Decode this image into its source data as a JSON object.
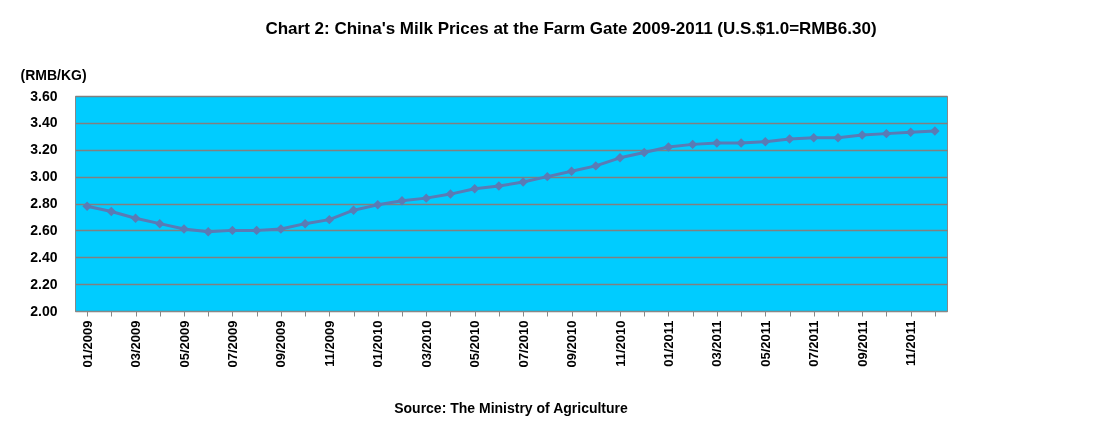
{
  "chart_data": {
    "type": "line",
    "title": "Chart 2: China's  Milk Prices at the Farm Gate 2009-2011 (U.S.$1.0=RMB6.30)",
    "ylabel": "(RMB/KG)",
    "categories": [
      "01/2009",
      null,
      "03/2009",
      null,
      "05/2009",
      null,
      "07/2009",
      null,
      "09/2009",
      null,
      "11/2009",
      null,
      "01/2010",
      null,
      "03/2010",
      null,
      "05/2010",
      null,
      "07/2010",
      null,
      "09/2010",
      null,
      "11/2010",
      null,
      "01/2011",
      null,
      "03/2011",
      null,
      "05/2011",
      null,
      "07/2011",
      null,
      "09/2011",
      null,
      "11/2011",
      null
    ],
    "series": [
      {
        "color": "#5a7bb5",
        "values": [
          2.78,
          2.74,
          2.69,
          2.65,
          2.61,
          2.59,
          2.6,
          2.6,
          2.61,
          2.65,
          2.68,
          2.75,
          2.79,
          2.82,
          2.84,
          2.87,
          2.91,
          2.93,
          2.96,
          3.0,
          3.04,
          3.08,
          3.14,
          3.18,
          3.22,
          3.24,
          3.25,
          3.25,
          3.26,
          3.28,
          3.29,
          3.29,
          3.31,
          3.32,
          3.33,
          3.34
        ]
      }
    ],
    "ylim": [
      2.0,
      3.6
    ],
    "yticks": [
      {
        "value": 2.0,
        "label": "2.00"
      },
      {
        "value": 2.2,
        "label": "2.20"
      },
      {
        "value": 2.4,
        "label": "2.40"
      },
      {
        "value": 2.6,
        "label": "2.60"
      },
      {
        "value": 2.8,
        "label": "2.80"
      },
      {
        "value": 3.0,
        "label": "3.00"
      },
      {
        "value": 3.2,
        "label": "3.20"
      },
      {
        "value": 3.4,
        "label": "3.40"
      },
      {
        "value": 3.6,
        "label": "3.60"
      }
    ],
    "grid": "y",
    "marker": "diamond",
    "annotations": [
      "Source:  The Ministry of Agriculture"
    ]
  }
}
